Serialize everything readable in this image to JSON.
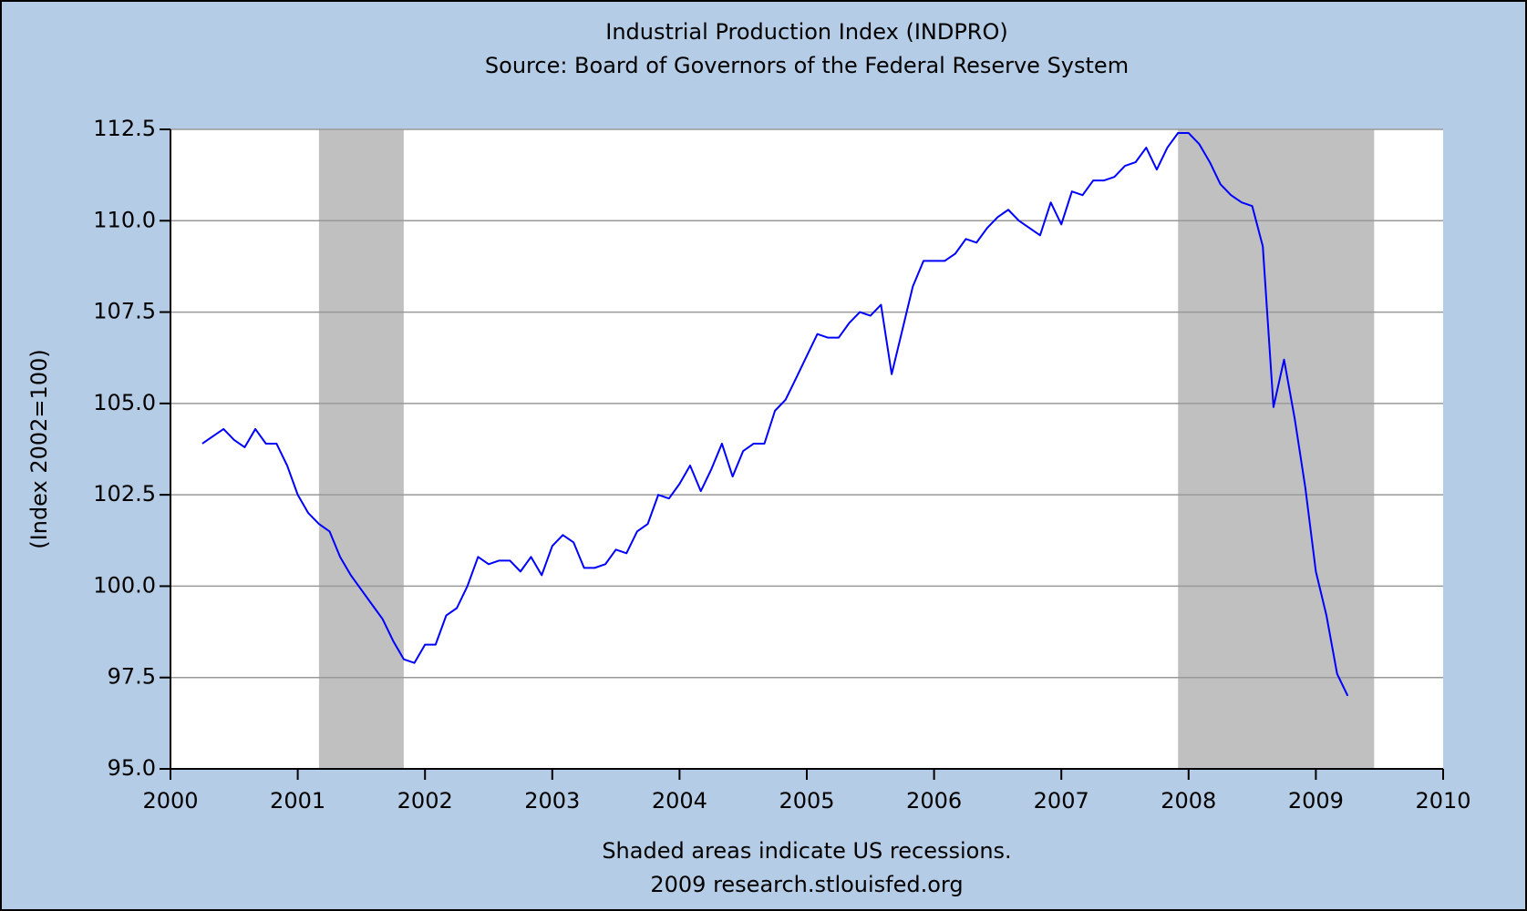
{
  "chart_data": {
    "type": "line",
    "title": "Industrial Production Index (INDPRO)",
    "subtitle": "Source: Board of Governors of the Federal Reserve System",
    "y_label": "(Index 2002=100)",
    "notes": [
      "Shaded areas indicate US recessions.",
      "2009 research.stlouisfed.org"
    ],
    "xlim": [
      2000,
      2010
    ],
    "xticks": [
      2000,
      2001,
      2002,
      2003,
      2004,
      2005,
      2006,
      2007,
      2008,
      2009,
      2010
    ],
    "ylim": [
      95,
      112.5
    ],
    "yticks": [
      {
        "value": 95,
        "label": "95.0"
      },
      97.5,
      {
        "value": 100,
        "label": "100.0"
      },
      102.5,
      {
        "value": 105,
        "label": "105.0"
      },
      107.5,
      {
        "value": 110,
        "label": "110.0"
      },
      112.5
    ],
    "grid": true,
    "recession_color": "#c0c0c0",
    "recessions": [
      [
        2001.167,
        2001.833
      ],
      [
        2007.917,
        2009.458
      ]
    ],
    "x": [
      2000.25,
      2000.333,
      2000.417,
      2000.5,
      2000.583,
      2000.667,
      2000.75,
      2000.833,
      2000.917,
      2001.0,
      2001.083,
      2001.167,
      2001.25,
      2001.333,
      2001.417,
      2001.5,
      2001.583,
      2001.667,
      2001.75,
      2001.833,
      2001.917,
      2002.0,
      2002.083,
      2002.167,
      2002.25,
      2002.333,
      2002.417,
      2002.5,
      2002.583,
      2002.667,
      2002.75,
      2002.833,
      2002.917,
      2003.0,
      2003.083,
      2003.167,
      2003.25,
      2003.333,
      2003.417,
      2003.5,
      2003.583,
      2003.667,
      2003.75,
      2003.833,
      2003.917,
      2004.0,
      2004.083,
      2004.167,
      2004.25,
      2004.333,
      2004.417,
      2004.5,
      2004.583,
      2004.667,
      2004.75,
      2004.833,
      2004.917,
      2005.0,
      2005.083,
      2005.167,
      2005.25,
      2005.333,
      2005.417,
      2005.5,
      2005.583,
      2005.667,
      2005.75,
      2005.833,
      2005.917,
      2006.0,
      2006.083,
      2006.167,
      2006.25,
      2006.333,
      2006.417,
      2006.5,
      2006.583,
      2006.667,
      2006.75,
      2006.833,
      2006.917,
      2007.0,
      2007.083,
      2007.167,
      2007.25,
      2007.333,
      2007.417,
      2007.5,
      2007.583,
      2007.667,
      2007.75,
      2007.833,
      2007.917,
      2008.0,
      2008.083,
      2008.167,
      2008.25,
      2008.333,
      2008.417,
      2008.5,
      2008.583,
      2008.667,
      2008.75,
      2008.833,
      2008.917,
      2009.0,
      2009.083,
      2009.167,
      2009.25
    ],
    "series": [
      {
        "name": "INDPRO",
        "color": "#0000ff",
        "values": [
          103.9,
          104.1,
          104.3,
          104.0,
          103.8,
          104.3,
          103.9,
          103.9,
          103.3,
          102.5,
          102.0,
          101.7,
          101.5,
          100.8,
          100.3,
          99.9,
          99.5,
          99.1,
          98.5,
          98.0,
          97.9,
          98.4,
          98.4,
          99.2,
          99.4,
          100.0,
          100.8,
          100.6,
          100.7,
          100.7,
          100.4,
          100.8,
          100.3,
          101.1,
          101.4,
          101.2,
          100.5,
          100.5,
          100.6,
          101.0,
          100.9,
          101.5,
          101.7,
          102.5,
          102.4,
          102.8,
          103.3,
          102.6,
          103.2,
          103.9,
          103.0,
          103.7,
          103.9,
          103.9,
          104.8,
          105.1,
          105.7,
          106.3,
          106.9,
          106.8,
          106.8,
          107.2,
          107.5,
          107.4,
          107.7,
          105.8,
          107.0,
          108.2,
          108.9,
          108.9,
          108.9,
          109.1,
          109.5,
          109.4,
          109.8,
          110.1,
          110.3,
          110.0,
          109.8,
          109.6,
          110.5,
          109.9,
          110.8,
          110.7,
          111.1,
          111.1,
          111.2,
          111.5,
          111.6,
          112.0,
          111.4,
          112.0,
          112.4,
          112.4,
          112.1,
          111.6,
          111.0,
          110.7,
          110.5,
          110.4,
          109.3,
          104.9,
          106.2,
          104.6,
          102.7,
          100.4,
          99.2,
          97.6,
          97.0
        ]
      }
    ]
  }
}
